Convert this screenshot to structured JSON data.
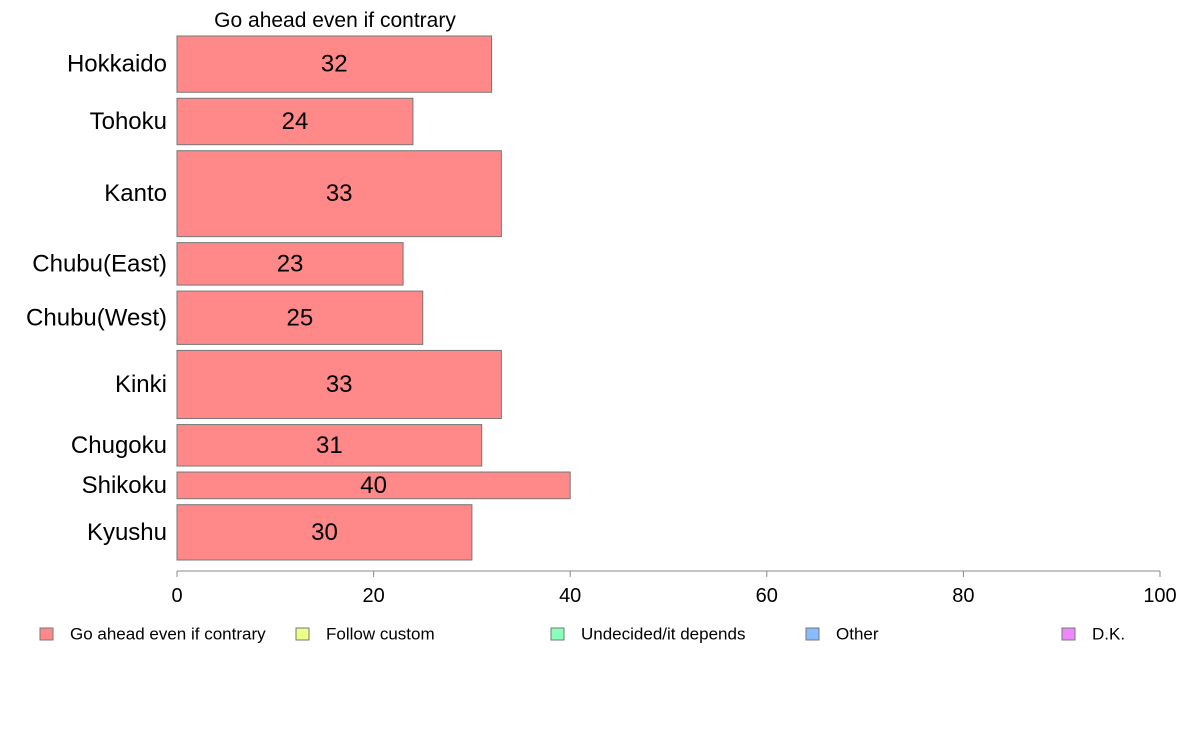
{
  "chart_data": {
    "type": "bar",
    "orientation": "horizontal",
    "title": "Go ahead even if contrary",
    "categories": [
      "Hokkaido",
      "Tohoku",
      "Kanto",
      "Chubu(East)",
      "Chubu(West)",
      "Kinki",
      "Chugoku",
      "Shikoku",
      "Kyushu"
    ],
    "category_weights": [
      5.7,
      4.7,
      8.7,
      4.3,
      5.4,
      6.9,
      4.2,
      2.7,
      5.6
    ],
    "series": [
      {
        "name": "Go ahead even if contrary",
        "color": "#ff8888",
        "values": [
          32,
          24,
          33,
          23,
          25,
          33,
          31,
          40,
          30
        ],
        "data_labels": [
          "32",
          "24",
          "33",
          "23",
          "25",
          "33",
          "31",
          "40",
          "30"
        ]
      }
    ],
    "xlim": [
      0,
      100
    ],
    "xticks": [
      0,
      20,
      40,
      60,
      80,
      100
    ],
    "xtick_labels": [
      "0",
      "20",
      "40",
      "60",
      "80",
      "100"
    ],
    "grid": false,
    "legend": {
      "placement": "bottom",
      "entries": [
        {
          "label": "Go ahead even if contrary",
          "color": "#ff8888"
        },
        {
          "label": "Follow custom",
          "color": "#eeff88"
        },
        {
          "label": "Undecided/it depends",
          "color": "#88ffbb"
        },
        {
          "label": "Other",
          "color": "#88bbff"
        },
        {
          "label": "D.K.",
          "color": "#ee88ff"
        }
      ]
    }
  }
}
